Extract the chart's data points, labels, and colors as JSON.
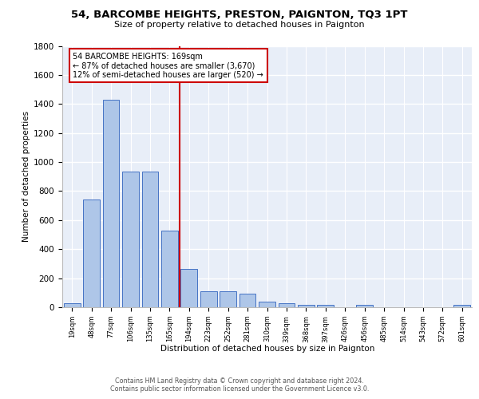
{
  "title1": "54, BARCOMBE HEIGHTS, PRESTON, PAIGNTON, TQ3 1PT",
  "title2": "Size of property relative to detached houses in Paignton",
  "xlabel": "Distribution of detached houses by size in Paignton",
  "ylabel": "Number of detached properties",
  "bar_labels": [
    "19sqm",
    "48sqm",
    "77sqm",
    "106sqm",
    "135sqm",
    "165sqm",
    "194sqm",
    "223sqm",
    "252sqm",
    "281sqm",
    "310sqm",
    "339sqm",
    "368sqm",
    "397sqm",
    "426sqm",
    "456sqm",
    "485sqm",
    "514sqm",
    "543sqm",
    "572sqm",
    "601sqm"
  ],
  "bar_values": [
    25,
    740,
    1430,
    935,
    935,
    530,
    265,
    110,
    110,
    95,
    40,
    25,
    15,
    15,
    0,
    15,
    0,
    0,
    0,
    0,
    15
  ],
  "bar_color": "#aec6e8",
  "bar_edge_color": "#4472c4",
  "vline_color": "#cc0000",
  "vline_x": 5.5,
  "annotation_text": "54 BARCOMBE HEIGHTS: 169sqm\n← 87% of detached houses are smaller (3,670)\n12% of semi-detached houses are larger (520) →",
  "ylim_max": 1800,
  "yticks": [
    0,
    200,
    400,
    600,
    800,
    1000,
    1200,
    1400,
    1600,
    1800
  ],
  "footer": "Contains HM Land Registry data © Crown copyright and database right 2024.\nContains public sector information licensed under the Government Licence v3.0.",
  "bg_color": "#e8eef8",
  "grid_color": "#ffffff"
}
